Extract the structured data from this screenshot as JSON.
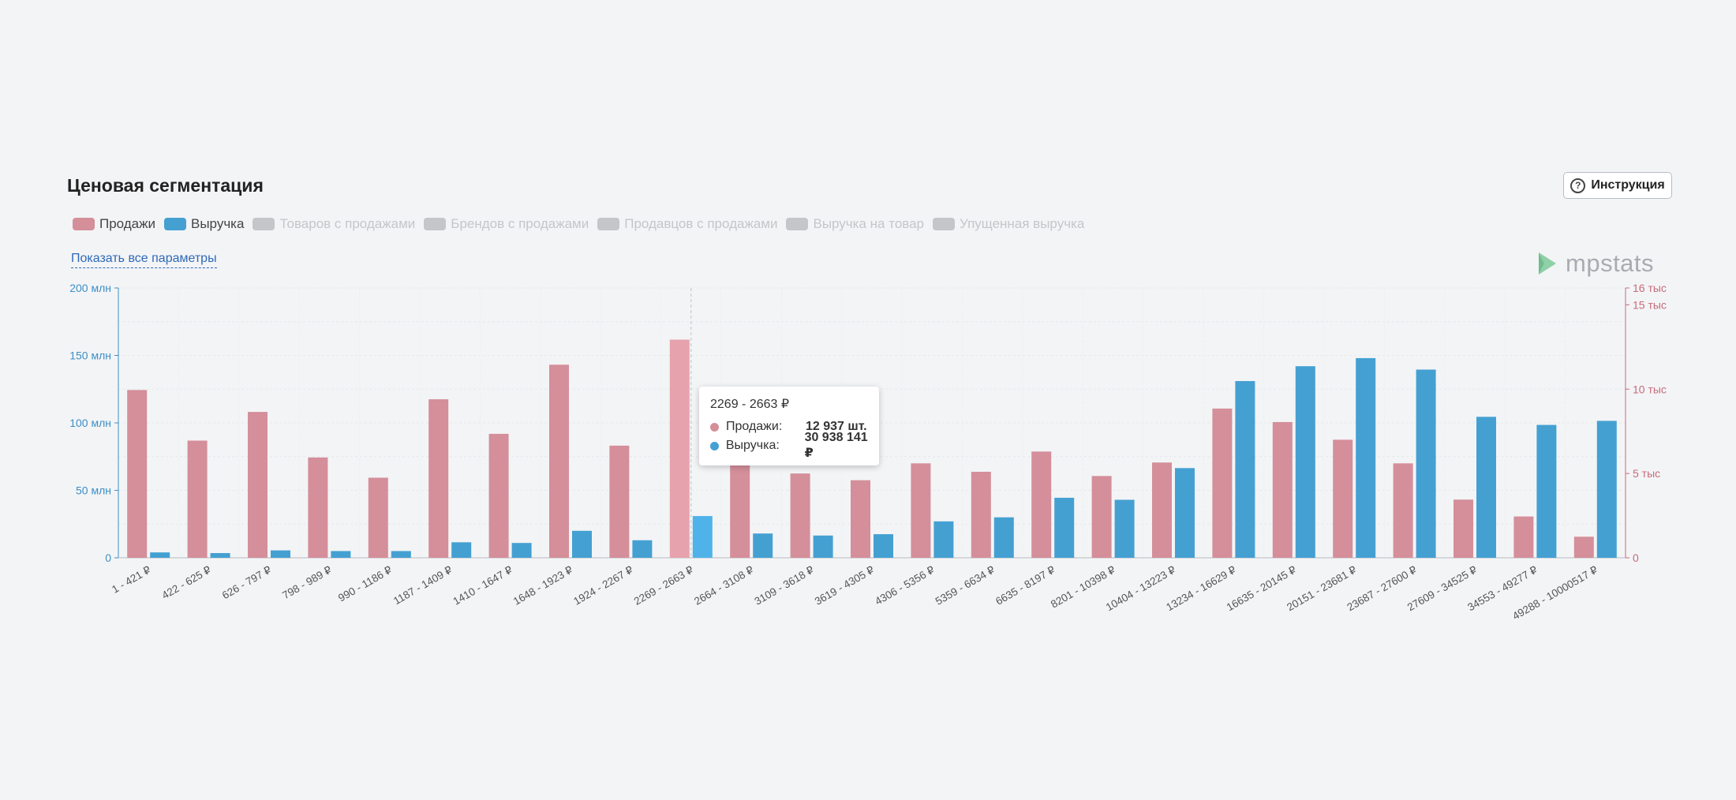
{
  "header": {
    "title": "Ценовая сегментация",
    "instruction_label": "Инструкция"
  },
  "legend": [
    {
      "label": "Продажи",
      "active": true,
      "color": "#d48f9a"
    },
    {
      "label": "Выручка",
      "active": true,
      "color": "#45a0d2"
    },
    {
      "label": "Товаров с продажами",
      "active": false,
      "color": "#c4c6c9"
    },
    {
      "label": "Брендов с продажами",
      "active": false,
      "color": "#c4c6c9"
    },
    {
      "label": "Продавцов с продажами",
      "active": false,
      "color": "#c4c6c9"
    },
    {
      "label": "Выручка на товар",
      "active": false,
      "color": "#c4c6c9"
    },
    {
      "label": "Упущенная выручка",
      "active": false,
      "color": "#c4c6c9"
    }
  ],
  "show_all_link": "Показать все параметры",
  "logo": {
    "text": "mpstats",
    "icon": "mpstats-logo-icon"
  },
  "colors": {
    "sales": "#d48f9a",
    "sales_highlight": "#e6a2ad",
    "revenue": "#45a0d2",
    "revenue_highlight": "#4fb3ea",
    "inactive": "#c4c6c9",
    "left_axis": "#3d8fc6",
    "right_axis": "#c76b7a"
  },
  "tooltip": {
    "title": "2269 - 2663 ₽",
    "rows": [
      {
        "label": "Продажи:",
        "value": "12 937 шт.",
        "color": "#d48f9a"
      },
      {
        "label": "Выручка:",
        "value": "30 938 141 ₽",
        "color": "#45a0d2"
      }
    ]
  },
  "chart_data": {
    "type": "bar",
    "categories": [
      "1 - 421 ₽",
      "422 - 625 ₽",
      "626 - 797 ₽",
      "798 - 989 ₽",
      "990 - 1186 ₽",
      "1187 - 1409 ₽",
      "1410 - 1647 ₽",
      "1648 - 1923 ₽",
      "1924 - 2267 ₽",
      "2269 - 2663 ₽",
      "2664 - 3108 ₽",
      "3109 - 3618 ₽",
      "3619 - 4305 ₽",
      "4306 - 5356 ₽",
      "5359 - 6634 ₽",
      "6635 - 8197 ₽",
      "8201 - 10398 ₽",
      "10404 - 13223 ₽",
      "13234 - 16629 ₽",
      "16635 - 20145 ₽",
      "20151 - 23681 ₽",
      "23687 - 27600 ₽",
      "27609 - 34525 ₽",
      "34553 - 49277 ₽",
      "49288 - 10000517 ₽"
    ],
    "series": [
      {
        "name": "Продажи",
        "axis": "right",
        "unit": "шт.",
        "values": [
          9950,
          6950,
          8650,
          5950,
          4750,
          9400,
          7350,
          11450,
          6650,
          12937,
          5650,
          5000,
          4600,
          5600,
          5100,
          6300,
          4850,
          5650,
          8850,
          8050,
          7000,
          5600,
          3450,
          2450,
          1250
        ]
      },
      {
        "name": "Выручка",
        "axis": "left",
        "unit": "₽",
        "values": [
          4000000,
          3500000,
          5500000,
          5000000,
          5000000,
          11500000,
          11000000,
          20000000,
          13000000,
          30938141,
          18000000,
          16500000,
          17500000,
          27000000,
          30000000,
          44500000,
          43000000,
          66500000,
          131000000,
          142000000,
          148000000,
          139500000,
          104500000,
          98500000,
          101500000
        ]
      }
    ],
    "highlight_index": 9,
    "left_axis": {
      "ticks": [
        "0",
        "50 млн",
        "100 млн",
        "150 млн",
        "200 млн"
      ],
      "min": 0,
      "max": 200000000
    },
    "right_axis": {
      "ticks": [
        "0",
        "5 тыс",
        "10 тыс",
        "15 тыс",
        "16 тыс"
      ],
      "tick_values": [
        0,
        5000,
        10000,
        15000,
        16000
      ],
      "min": 0,
      "max": 16000
    },
    "grid": true
  }
}
